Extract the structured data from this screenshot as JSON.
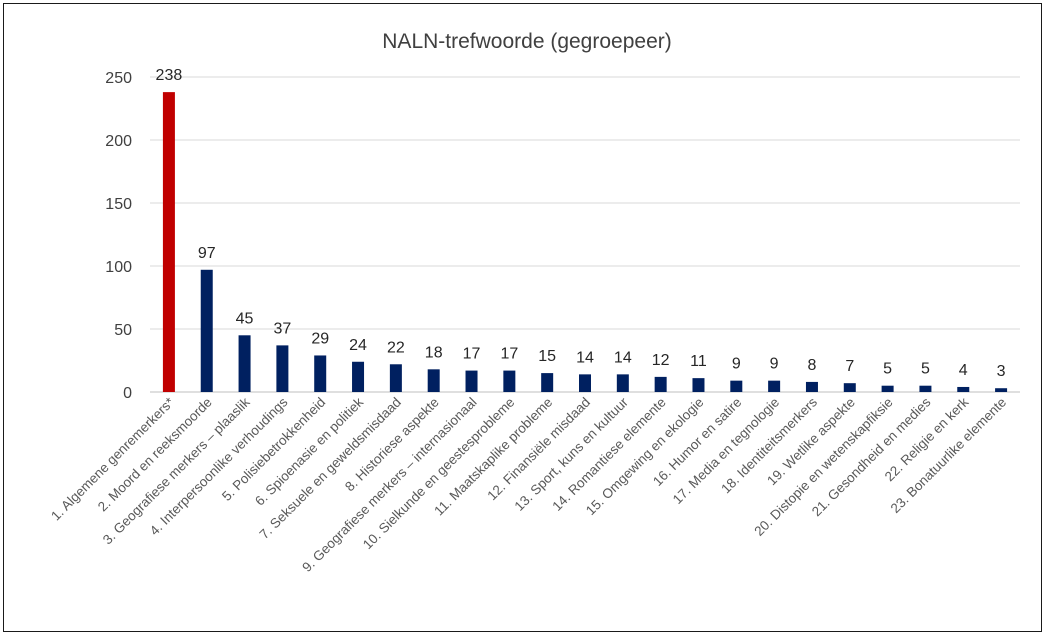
{
  "chart_data": {
    "type": "bar",
    "title": "NALN-trefwoorde (gegroepeer)",
    "xlabel": "",
    "ylabel": "",
    "ylim": [
      0,
      250
    ],
    "yticks": [
      0,
      50,
      100,
      150,
      200,
      250
    ],
    "grid": true,
    "legend": "none",
    "categories": [
      "1. Algemene genremerkers*",
      "2. Moord en reeksmoorde",
      "3. Geografiese merkers – plaaslik",
      "4. Interpersoonlike verhoudings",
      "5. Polisiebetrokkenheid",
      "6. Spioenasie en politiek",
      "7. Seksuele en geweldsmisdaad",
      "8. Historiese aspekte",
      "9. Geografiese merkers – internasionaal",
      "10. Sielkunde en geestesprobleme",
      "11. Maatskaplike probleme",
      "12. Finansiële misdaad",
      "13. Sport, kuns en kultuur",
      "14. Romantiese elemente",
      "15. Omgewing en ekologie",
      "16. Humor en satire",
      "17. Media en tegnologie",
      "18. Identiteitsmerkers",
      "19. Wetlike aspekte",
      "20. Distopie en wetenskapfiksie",
      "21. Gesondheid en medies",
      "22. Religie en kerk",
      "23. Bonatuurlike elemente"
    ],
    "values": [
      238,
      97,
      45,
      37,
      29,
      24,
      22,
      18,
      17,
      17,
      15,
      14,
      14,
      12,
      11,
      9,
      9,
      8,
      7,
      5,
      5,
      4,
      3
    ],
    "colors": {
      "highlight": "#c00000",
      "bar": "#002060"
    }
  }
}
